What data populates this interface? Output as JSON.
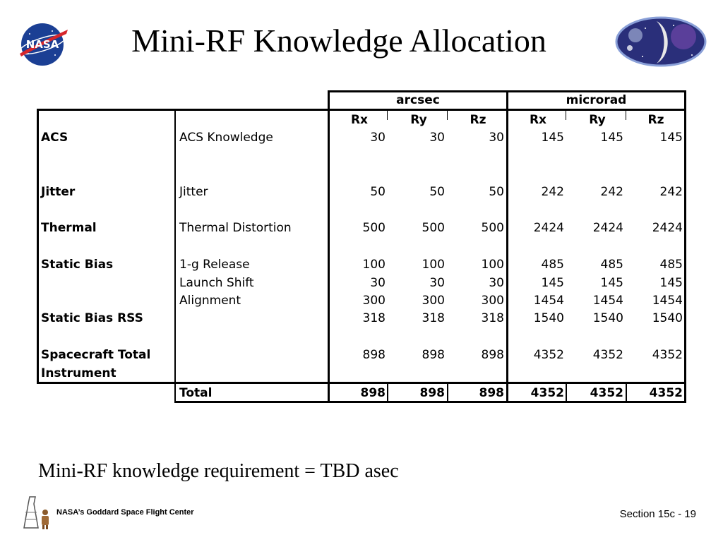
{
  "slide": {
    "title": "Mini-RF Knowledge Allocation",
    "requirement_text": "Mini-RF knowledge requirement = TBD asec",
    "footer_center": "NASA’s Goddard Space Flight Center",
    "footer_right": "Section 15c - 19"
  },
  "logos": {
    "nasa": "nasa-meatball-logo",
    "lro": "moon-mission-logo",
    "gsfc": "gsfc-astronaut-logo"
  },
  "table": {
    "group_headers": [
      "arcsec",
      "microrad"
    ],
    "axis_headers": [
      "Rx",
      "Ry",
      "Rz",
      "Rx",
      "Ry",
      "Rz"
    ],
    "rows": [
      {
        "category": "ACS",
        "item": "ACS Knowledge",
        "values": [
          "30",
          "30",
          "30",
          "145",
          "145",
          "145"
        ]
      },
      {
        "category": "Jitter",
        "item": "Jitter",
        "values": [
          "50",
          "50",
          "50",
          "242",
          "242",
          "242"
        ]
      },
      {
        "category": "Thermal",
        "item": "Thermal Distortion",
        "values": [
          "500",
          "500",
          "500",
          "2424",
          "2424",
          "2424"
        ]
      },
      {
        "category": "Static Bias",
        "item": "1-g Release",
        "values": [
          "100",
          "100",
          "100",
          "485",
          "485",
          "485"
        ]
      },
      {
        "category": "",
        "item": "Launch Shift",
        "values": [
          "30",
          "30",
          "30",
          "145",
          "145",
          "145"
        ]
      },
      {
        "category": "",
        "item": "Alignment",
        "values": [
          "300",
          "300",
          "300",
          "1454",
          "1454",
          "1454"
        ]
      },
      {
        "category": "Static Bias RSS",
        "item": "",
        "values": [
          "318",
          "318",
          "318",
          "1540",
          "1540",
          "1540"
        ]
      },
      {
        "category": "Spacecraft Total",
        "category_line2": "Instrument",
        "item": "",
        "values": [
          "898",
          "898",
          "898",
          "4352",
          "4352",
          "4352"
        ]
      }
    ],
    "total": {
      "label": "Total",
      "values": [
        "898",
        "898",
        "898",
        "4352",
        "4352",
        "4352"
      ]
    }
  }
}
